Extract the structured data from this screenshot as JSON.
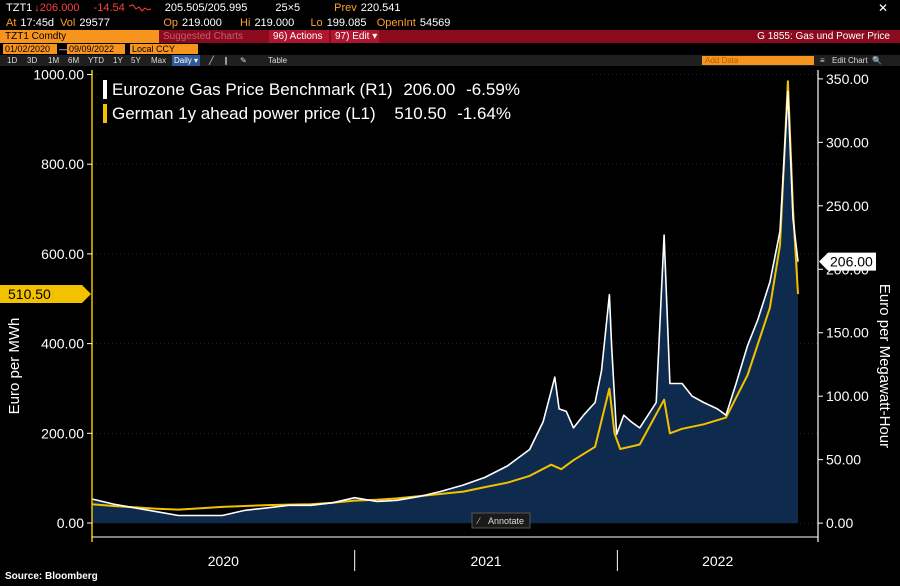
{
  "header": {
    "symbol": "TZT1",
    "last_price": "↓206.000",
    "net_change": "-14.54",
    "bid_ask": "205.505/205.995",
    "size": "25×5",
    "prev_label": "Prev",
    "prev_value": "220.541",
    "at_label": "At",
    "at_value": "17:45d",
    "vol_label": "Vol",
    "vol_value": "29577",
    "op_label": "Op",
    "op_value": "219.000",
    "hi_label": "Hi",
    "hi_value": "219.000",
    "lo_label": "Lo",
    "lo_value": "199.085",
    "oi_label": "OpenInt",
    "oi_value": "54569",
    "close_glyph": "✕"
  },
  "menu": {
    "security": "TZT1 Comdty",
    "related": "Suggested Charts",
    "actions": "96) Actions ▾",
    "edit": "97) Edit ▾",
    "graph_title": "G 1855: Gas und Power Price"
  },
  "range": {
    "start": "01/02/2020",
    "end": "09/09/2022",
    "dash": "—",
    "currency": "Local CCY"
  },
  "toolbar": {
    "periods": [
      "1D",
      "3D",
      "1M",
      "6M",
      "YTD",
      "1Y",
      "5Y",
      "Max"
    ],
    "frequency": "Daily ▾",
    "table": "Table",
    "add_data": "Add Data",
    "edit_chart": "Edit Chart",
    "zoom": "🔍"
  },
  "footer": {
    "source": "Source:  Bloomberg"
  },
  "chart_data": {
    "type": "line",
    "x_axis": {
      "tick_labels": [
        "2020",
        "2021",
        "2022"
      ],
      "start": "2020-01-02",
      "end": "2022-09-09"
    },
    "left_axis": {
      "label": "Euro per MWh",
      "ticks": [
        "0.00",
        "200.00",
        "400.00",
        "600.00",
        "800.00",
        "1000.00"
      ],
      "ylim": [
        -20,
        1010
      ],
      "last_value_tag": "510.50"
    },
    "right_axis": {
      "label": "Euro per Megawatt-Hour",
      "ticks": [
        "0.00",
        "50.00",
        "100.00",
        "150.00",
        "200.00",
        "250.00",
        "300.00",
        "350.00"
      ],
      "ylim": [
        -7,
        357
      ],
      "last_value_tag": "206.00"
    },
    "legend": {
      "position": "top-left",
      "entries": [
        {
          "label": "Eurozone Gas Price Benchmark (R1)",
          "last": "206.00",
          "change": "-6.59%",
          "color": "#ffffff"
        },
        {
          "label": "German 1y ahead power price (L1)",
          "last": "510.50",
          "change": "-1.64%",
          "color": "#f2c100"
        }
      ]
    },
    "annotate_label": "Annotate",
    "colors": {
      "gas": "#ffffff",
      "power": "#f2c100",
      "area": "#0e2a4d",
      "plot_bg": "#000000",
      "gridline": "#3a3a3a",
      "axis_text": "#ffffff"
    },
    "series": [
      {
        "name": "Eurozone Gas Price Benchmark (R1)",
        "axis": "right",
        "points": [
          [
            "2020-01-02",
            19
          ],
          [
            "2020-02-01",
            15
          ],
          [
            "2020-03-01",
            12
          ],
          [
            "2020-04-01",
            9
          ],
          [
            "2020-05-01",
            6
          ],
          [
            "2020-06-01",
            6
          ],
          [
            "2020-07-01",
            6
          ],
          [
            "2020-08-01",
            10
          ],
          [
            "2020-09-01",
            12
          ],
          [
            "2020-10-01",
            14
          ],
          [
            "2020-11-01",
            14
          ],
          [
            "2020-12-01",
            16
          ],
          [
            "2021-01-01",
            20
          ],
          [
            "2021-02-01",
            17
          ],
          [
            "2021-03-01",
            18
          ],
          [
            "2021-04-01",
            21
          ],
          [
            "2021-05-01",
            25
          ],
          [
            "2021-06-01",
            30
          ],
          [
            "2021-07-01",
            36
          ],
          [
            "2021-08-01",
            45
          ],
          [
            "2021-09-01",
            58
          ],
          [
            "2021-09-20",
            80
          ],
          [
            "2021-10-06",
            115
          ],
          [
            "2021-10-12",
            90
          ],
          [
            "2021-10-22",
            88
          ],
          [
            "2021-11-01",
            75
          ],
          [
            "2021-11-15",
            85
          ],
          [
            "2021-12-01",
            95
          ],
          [
            "2021-12-10",
            120
          ],
          [
            "2021-12-21",
            180
          ],
          [
            "2021-12-24",
            140
          ],
          [
            "2021-12-31",
            70
          ],
          [
            "2022-01-10",
            85
          ],
          [
            "2022-01-20",
            80
          ],
          [
            "2022-02-01",
            75
          ],
          [
            "2022-02-24",
            95
          ],
          [
            "2022-03-07",
            227
          ],
          [
            "2022-03-15",
            110
          ],
          [
            "2022-04-01",
            110
          ],
          [
            "2022-04-15",
            100
          ],
          [
            "2022-05-01",
            95
          ],
          [
            "2022-05-20",
            90
          ],
          [
            "2022-06-01",
            85
          ],
          [
            "2022-06-15",
            110
          ],
          [
            "2022-07-01",
            140
          ],
          [
            "2022-07-15",
            160
          ],
          [
            "2022-08-01",
            190
          ],
          [
            "2022-08-15",
            230
          ],
          [
            "2022-08-26",
            340
          ],
          [
            "2022-09-02",
            240
          ],
          [
            "2022-09-09",
            206
          ]
        ]
      },
      {
        "name": "German 1y ahead power price (L1)",
        "axis": "left",
        "points": [
          [
            "2020-01-02",
            42
          ],
          [
            "2020-02-01",
            38
          ],
          [
            "2020-03-01",
            35
          ],
          [
            "2020-04-01",
            32
          ],
          [
            "2020-05-01",
            30
          ],
          [
            "2020-06-01",
            33
          ],
          [
            "2020-07-01",
            36
          ],
          [
            "2020-08-01",
            38
          ],
          [
            "2020-09-01",
            40
          ],
          [
            "2020-10-01",
            41
          ],
          [
            "2020-11-01",
            42
          ],
          [
            "2020-12-01",
            45
          ],
          [
            "2021-01-01",
            50
          ],
          [
            "2021-02-01",
            52
          ],
          [
            "2021-03-01",
            55
          ],
          [
            "2021-04-01",
            60
          ],
          [
            "2021-05-01",
            65
          ],
          [
            "2021-06-01",
            70
          ],
          [
            "2021-07-01",
            80
          ],
          [
            "2021-08-01",
            90
          ],
          [
            "2021-09-01",
            105
          ],
          [
            "2021-10-01",
            130
          ],
          [
            "2021-10-15",
            120
          ],
          [
            "2021-11-01",
            140
          ],
          [
            "2021-12-01",
            170
          ],
          [
            "2021-12-21",
            300
          ],
          [
            "2021-12-28",
            200
          ],
          [
            "2022-01-05",
            165
          ],
          [
            "2022-02-01",
            175
          ],
          [
            "2022-03-07",
            275
          ],
          [
            "2022-03-15",
            200
          ],
          [
            "2022-04-01",
            210
          ],
          [
            "2022-05-01",
            220
          ],
          [
            "2022-06-01",
            235
          ],
          [
            "2022-07-01",
            330
          ],
          [
            "2022-08-01",
            480
          ],
          [
            "2022-08-15",
            620
          ],
          [
            "2022-08-26",
            985
          ],
          [
            "2022-09-02",
            700
          ],
          [
            "2022-09-09",
            510.5
          ]
        ]
      }
    ]
  }
}
